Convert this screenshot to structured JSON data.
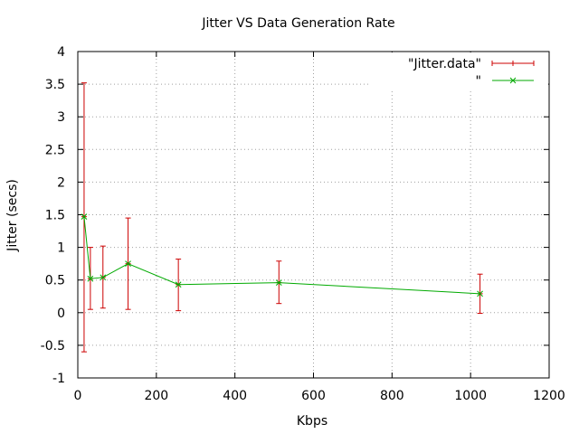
{
  "chart_data": {
    "type": "line",
    "title": "Jitter VS Data Generation Rate",
    "xlabel": "Kbps",
    "ylabel": "Jitter (secs)",
    "xlim": [
      0,
      1200
    ],
    "ylim": [
      -1,
      4
    ],
    "xticks": [
      0,
      200,
      400,
      600,
      800,
      1000,
      1200
    ],
    "xtick_labels": [
      "0",
      "200",
      "400",
      "600",
      "800",
      "1000",
      "1200"
    ],
    "yticks": [
      -1,
      -0.5,
      0,
      0.5,
      1,
      1.5,
      2,
      2.5,
      3,
      3.5,
      4
    ],
    "ytick_labels": [
      "-1",
      "-0.5",
      "0",
      "0.5",
      "1",
      "1.5",
      "2",
      "2.5",
      "3",
      "3.5",
      "4"
    ],
    "grid": true,
    "legend_position": "top-right",
    "series": [
      {
        "name": "\"Jitter.data\"",
        "kind": "errorbars",
        "color": "#cc0000",
        "x": [
          16,
          32,
          64,
          128,
          256,
          512,
          1024
        ],
        "y": [
          1.47,
          0.52,
          0.54,
          0.75,
          0.43,
          0.46,
          0.29
        ],
        "ylow": [
          -0.6,
          0.05,
          0.07,
          0.05,
          0.03,
          0.14,
          -0.01
        ],
        "yhigh": [
          3.52,
          1.0,
          1.02,
          1.45,
          0.82,
          0.79,
          0.59
        ]
      },
      {
        "name": "\"",
        "kind": "linespoints",
        "color": "#00aa00",
        "x": [
          16,
          32,
          64,
          128,
          256,
          512,
          1024
        ],
        "y": [
          1.47,
          0.52,
          0.54,
          0.75,
          0.43,
          0.46,
          0.29
        ]
      }
    ]
  }
}
